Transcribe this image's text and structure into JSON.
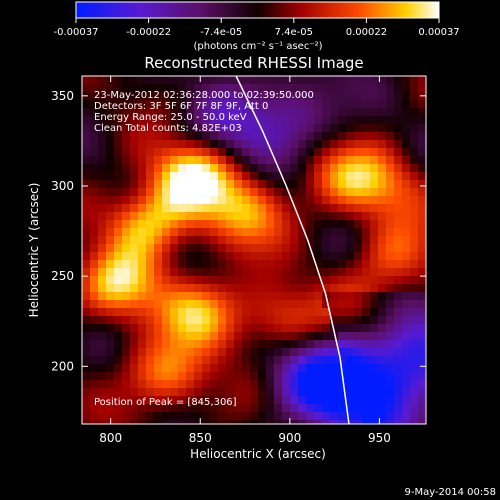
{
  "colorbar": {
    "ticks": [
      "-0.00037",
      "-0.00022",
      "-7.4e-05",
      "7.4e-05",
      "0.00022",
      "0.00037"
    ],
    "unit_label": "(photons cm⁻² s⁻¹ asec⁻²)",
    "range": [
      -0.00037,
      0.00037
    ]
  },
  "chart_data": {
    "type": "heatmap",
    "title": "Reconstructed RHESSI Image",
    "xlabel": "Heliocentric X (arcsec)",
    "ylabel": "Heliocentric Y (arcsec)",
    "xlim": [
      784,
      976
    ],
    "ylim": [
      168,
      361
    ],
    "x_ticks": [
      800,
      850,
      900,
      950
    ],
    "y_ticks": [
      200,
      250,
      300,
      350
    ],
    "limb_curve": [
      [
        870,
        361
      ],
      [
        885,
        330
      ],
      [
        898,
        300
      ],
      [
        910,
        270
      ],
      [
        920,
        240
      ],
      [
        928,
        205
      ],
      [
        933,
        168
      ]
    ],
    "annotations": [
      "23-May-2012 02:36:28.000 to 02:39:50.000",
      "Detectors: 3F 5F 6F 7F 8F 9F, Att 0",
      "Energy Range: 25.0 - 50.0 keV",
      "Clean    Total counts: 4.82E+03",
      "Position of Peak = [845,306]"
    ],
    "peak": [
      845,
      306
    ],
    "bright_regions": [
      {
        "x": 845,
        "y": 306,
        "value": 0.00037
      },
      {
        "x": 820,
        "y": 280,
        "value": 0.0003
      },
      {
        "x": 805,
        "y": 245,
        "value": 0.00028
      },
      {
        "x": 875,
        "y": 285,
        "value": 0.00026
      },
      {
        "x": 850,
        "y": 230,
        "value": 0.00027
      },
      {
        "x": 830,
        "y": 195,
        "value": 0.00025
      },
      {
        "x": 895,
        "y": 225,
        "value": 0.0002
      },
      {
        "x": 930,
        "y": 305,
        "value": 0.0002
      },
      {
        "x": 955,
        "y": 300,
        "value": 0.00018
      },
      {
        "x": 960,
        "y": 260,
        "value": 0.00018
      },
      {
        "x": 945,
        "y": 230,
        "value": 0.00015
      }
    ],
    "dark_regions": [
      {
        "x": 915,
        "y": 195,
        "value": -0.0003
      },
      {
        "x": 940,
        "y": 180,
        "value": -0.00028
      },
      {
        "x": 965,
        "y": 205,
        "value": -0.00025
      },
      {
        "x": 900,
        "y": 340,
        "value": -0.0002
      },
      {
        "x": 865,
        "y": 330,
        "value": -0.00015
      }
    ]
  },
  "footer": {
    "date": "9-May-2014 00:58"
  }
}
